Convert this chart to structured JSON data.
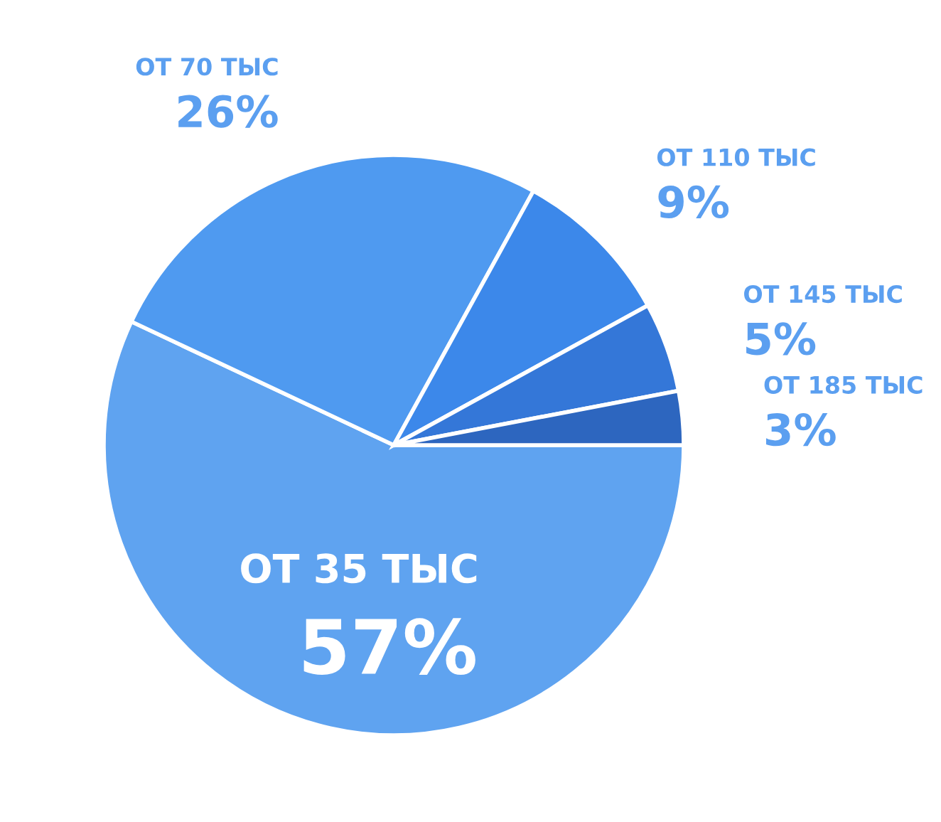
{
  "chart_data": {
    "type": "pie",
    "categories": [
      "ОТ 35 ТЫС",
      "ОТ 70 ТЫС",
      "ОТ 110 ТЫС",
      "ОТ 145 ТЫС",
      "ОТ 185 ТЫС"
    ],
    "values": [
      57,
      26,
      9,
      5,
      3
    ],
    "value_labels": [
      "57%",
      "26%",
      "9%",
      "5%",
      "3%"
    ],
    "colors": [
      "#5fa3f0",
      "#4f9af0",
      "#3c88ea",
      "#3477d8",
      "#2d66bf"
    ]
  }
}
